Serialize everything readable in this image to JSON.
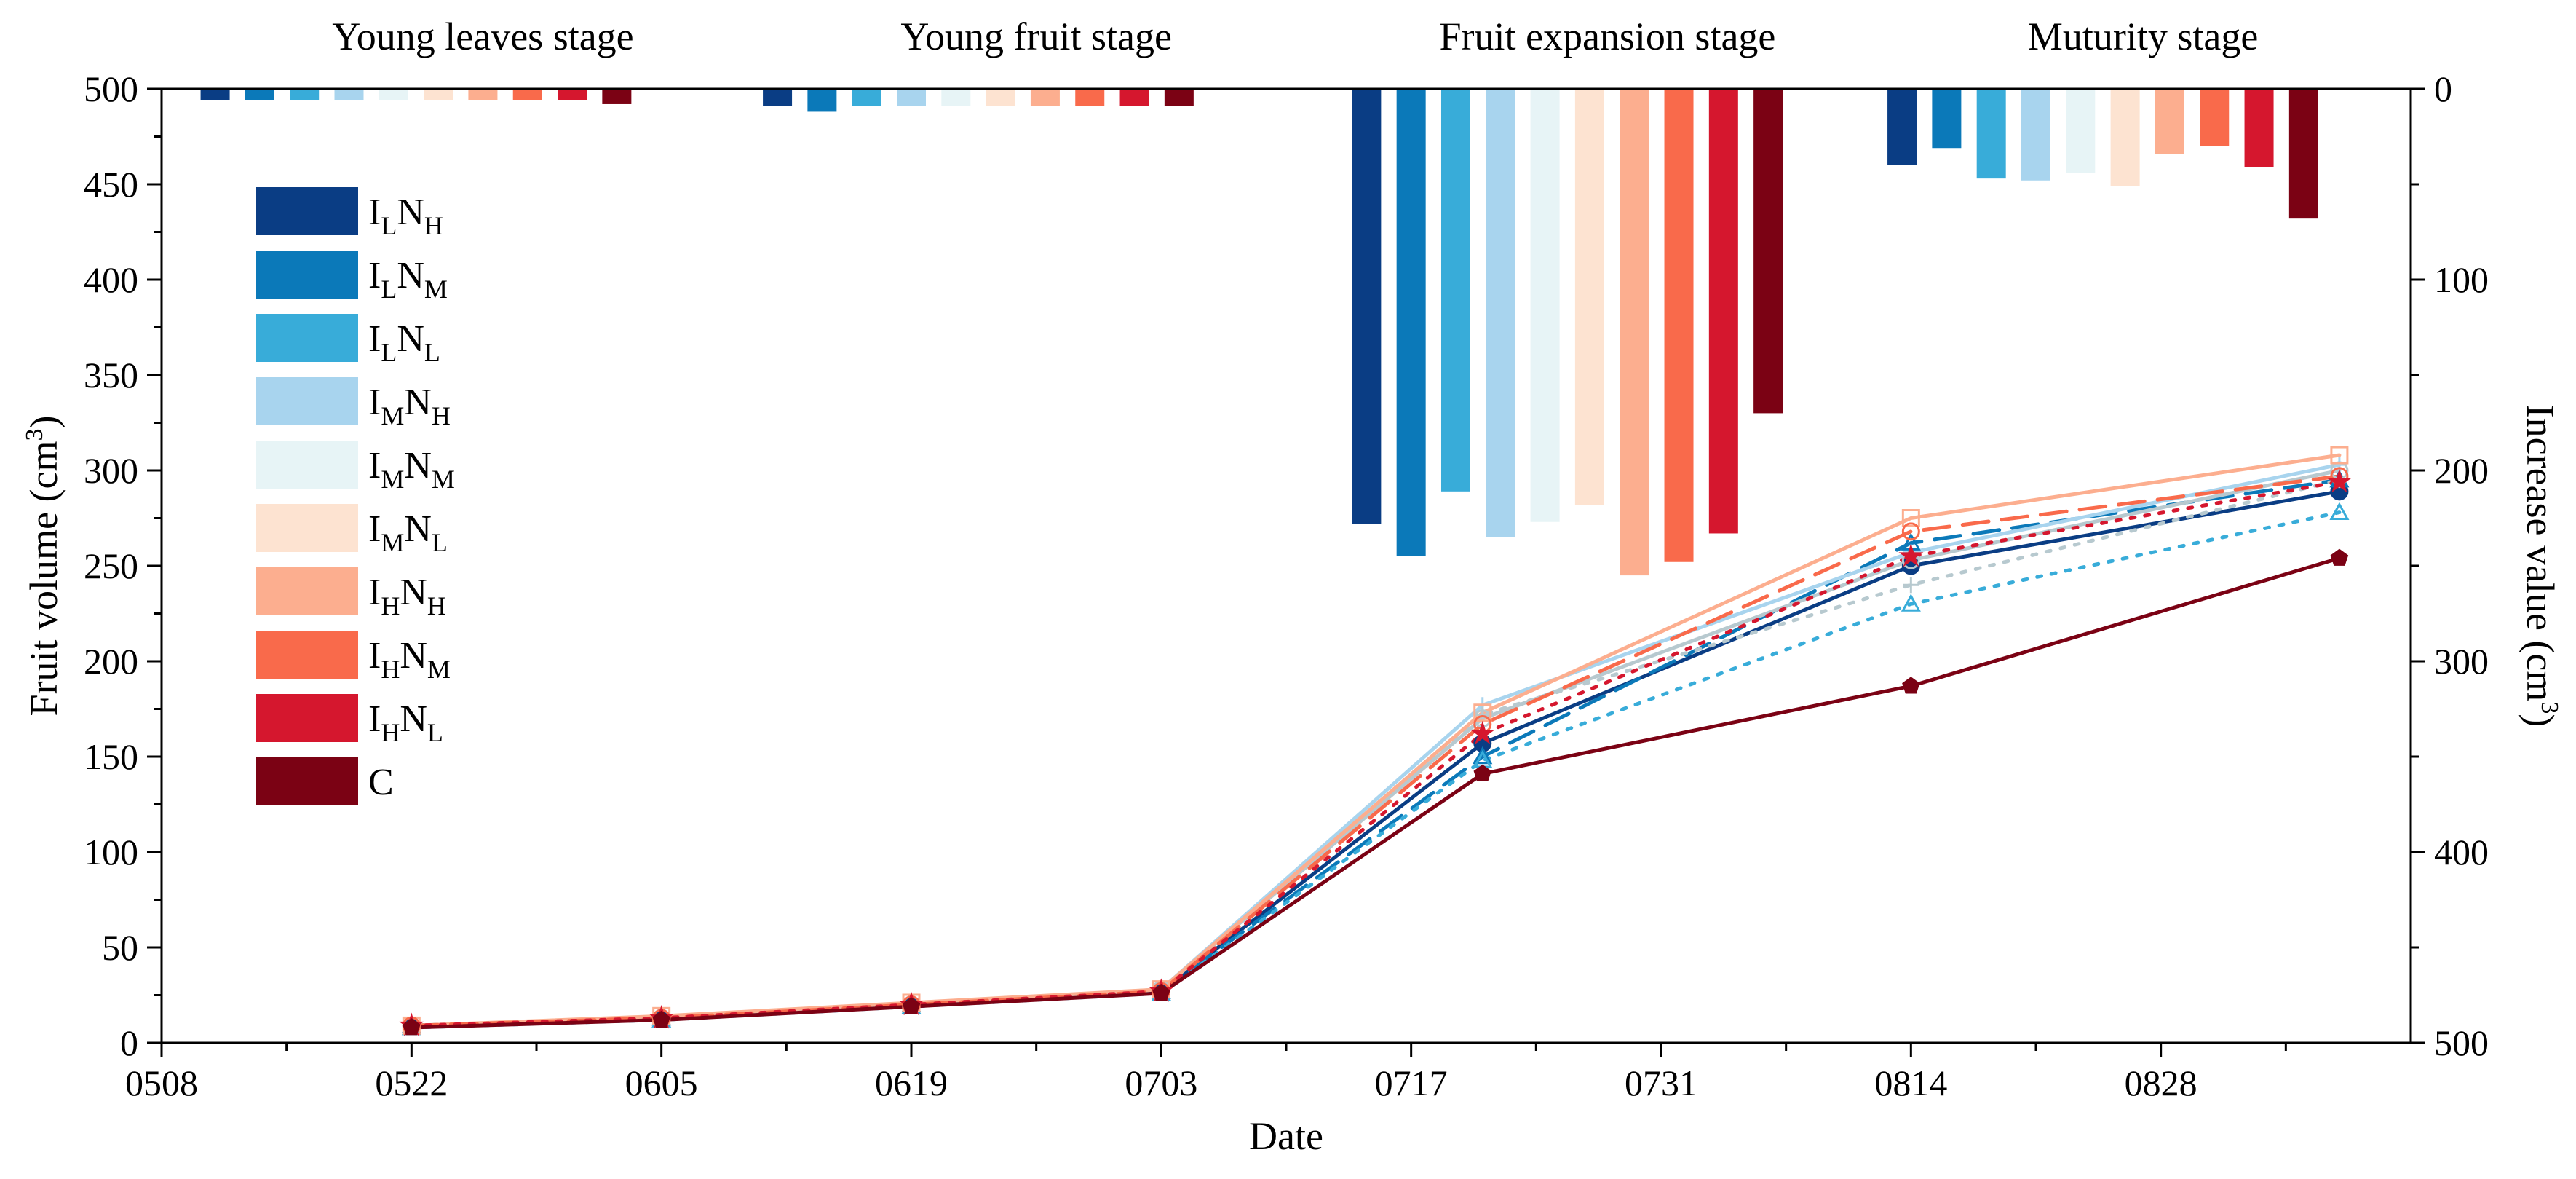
{
  "chart_data": {
    "type": "bar+line",
    "xlabel": "Date",
    "ylabel_left": "Fruit volume (cm",
    "ylabel_left_sup": "3",
    "ylabel_left_end": ")",
    "ylabel_right": "Increase value (cm",
    "ylabel_right_sup": "3",
    "ylabel_right_end": ")",
    "x_ticks": [
      "0508",
      "0522",
      "0605",
      "0619",
      "0703",
      "0717",
      "0731",
      "0814",
      "0828"
    ],
    "x_tick_days": [
      0,
      14,
      28,
      42,
      56,
      70,
      84,
      98,
      112
    ],
    "xlim_days": [
      0,
      126
    ],
    "ylim_left": [
      0,
      500
    ],
    "y_ticks_left": [
      0,
      50,
      100,
      150,
      200,
      250,
      300,
      350,
      400,
      450,
      500
    ],
    "ylim_right": [
      0,
      500
    ],
    "right_axis_inverted": true,
    "y_ticks_right": [
      0,
      100,
      200,
      300,
      400,
      500
    ],
    "stages": [
      {
        "name": "Young leaves stage",
        "center_day": 18
      },
      {
        "name": "Young fruit stage",
        "center_day": 49
      },
      {
        "name": "Fruit expansion stage",
        "center_day": 81
      },
      {
        "name": "Muturity stage",
        "center_day": 111
      }
    ],
    "series": [
      {
        "name": "ILNH",
        "main1": "I",
        "sub1": "L",
        "main2": "N",
        "sub2": "H",
        "color": "#0a3d84",
        "dash": "",
        "marker": "circle",
        "line": [
          9,
          13,
          20,
          27,
          157,
          250,
          289
        ],
        "increase": [
          {
            "day": 3,
            "value": 6
          },
          {
            "day": 34.5,
            "value": 9
          },
          {
            "day": 67.5,
            "value": 228
          },
          {
            "day": 97.5,
            "value": 40
          }
        ]
      },
      {
        "name": "ILNM",
        "main1": "I",
        "sub1": "L",
        "main2": "N",
        "sub2": "M",
        "color": "#0b79b9",
        "dash": "36,18",
        "marker": "triangle",
        "line": [
          9,
          13,
          20,
          27,
          150,
          262,
          295
        ],
        "increase": [
          {
            "day": 5.5,
            "value": 6
          },
          {
            "day": 37,
            "value": 12
          },
          {
            "day": 70,
            "value": 245
          },
          {
            "day": 100,
            "value": 31
          }
        ]
      },
      {
        "name": "ILNL",
        "main1": "I",
        "sub1": "L",
        "main2": "N",
        "sub2": "L",
        "color": "#38acd9",
        "dash": "6,14",
        "marker": "triangle",
        "line": [
          8,
          12,
          19,
          26,
          148,
          230,
          278
        ],
        "increase": [
          {
            "day": 8,
            "value": 6
          },
          {
            "day": 39.5,
            "value": 9
          },
          {
            "day": 72.5,
            "value": 211
          },
          {
            "day": 102.5,
            "value": 47
          }
        ]
      },
      {
        "name": "IMNH",
        "main1": "I",
        "sub1": "M",
        "main2": "N",
        "sub2": "H",
        "color": "#a8d4ee",
        "dash": "",
        "marker": "cross",
        "line": [
          9,
          13,
          20,
          28,
          177,
          257,
          303
        ],
        "increase": [
          {
            "day": 10.5,
            "value": 6
          },
          {
            "day": 42,
            "value": 9
          },
          {
            "day": 75,
            "value": 235
          },
          {
            "day": 105,
            "value": 48
          }
        ]
      },
      {
        "name": "IMNM",
        "main1": "I",
        "sub1": "M",
        "main2": "N",
        "sub2": "M",
        "color": "#e7f4f6",
        "dash": "",
        "marker": "circle",
        "line": [
          9,
          13,
          20,
          28,
          170,
          253,
          300
        ],
        "increase": [
          {
            "day": 13,
            "value": 6
          },
          {
            "day": 44.5,
            "value": 9
          },
          {
            "day": 77.5,
            "value": 227
          },
          {
            "day": 107.5,
            "value": 44
          }
        ]
      },
      {
        "name": "IMNL",
        "main1": "I",
        "sub1": "M",
        "main2": "N",
        "sub2": "L",
        "color": "#fde3d1",
        "dash": "6,14",
        "marker": "cross",
        "line": [
          9,
          13,
          20,
          27,
          172,
          240,
          295
        ],
        "increase": [
          {
            "day": 15.5,
            "value": 6
          },
          {
            "day": 47,
            "value": 9
          },
          {
            "day": 80,
            "value": 218
          },
          {
            "day": 110,
            "value": 51
          }
        ]
      },
      {
        "name": "IHNH",
        "main1": "I",
        "sub1": "H",
        "main2": "N",
        "sub2": "H",
        "color": "#fcae8f",
        "dash": "",
        "marker": "square",
        "line": [
          9,
          14,
          21,
          28,
          173,
          275,
          308
        ],
        "increase": [
          {
            "day": 18,
            "value": 6
          },
          {
            "day": 49.5,
            "value": 9
          },
          {
            "day": 82.5,
            "value": 255
          },
          {
            "day": 112.5,
            "value": 34
          }
        ]
      },
      {
        "name": "IHNM",
        "main1": "I",
        "sub1": "H",
        "main2": "N",
        "sub2": "M",
        "color": "#f96a4b",
        "dash": "36,18",
        "marker": "circle",
        "line": [
          9,
          13,
          20,
          27,
          167,
          268,
          297
        ],
        "increase": [
          {
            "day": 20.5,
            "value": 6
          },
          {
            "day": 52,
            "value": 9
          },
          {
            "day": 85,
            "value": 248
          },
          {
            "day": 115,
            "value": 30
          }
        ]
      },
      {
        "name": "IHNL",
        "main1": "I",
        "sub1": "H",
        "main2": "N",
        "sub2": "L",
        "color": "#d5172e",
        "dash": "6,14",
        "marker": "star",
        "line": [
          9,
          13,
          20,
          27,
          162,
          255,
          294
        ],
        "increase": [
          {
            "day": 23,
            "value": 6
          },
          {
            "day": 54.5,
            "value": 9
          },
          {
            "day": 87.5,
            "value": 233
          },
          {
            "day": 117.5,
            "value": 41
          }
        ]
      },
      {
        "name": "C",
        "main1": "C",
        "sub1": "",
        "main2": "",
        "sub2": "",
        "color": "#7b0214",
        "dash": "",
        "marker": "pentagon",
        "line": [
          8,
          12,
          19,
          26,
          141,
          187,
          254
        ],
        "increase": [
          {
            "day": 25.5,
            "value": 8
          },
          {
            "day": 57,
            "value": 9
          },
          {
            "day": 90,
            "value": 170
          },
          {
            "day": 120,
            "value": 68
          }
        ]
      }
    ],
    "line_days": [
      14,
      28,
      42,
      56,
      74,
      98,
      122
    ]
  }
}
